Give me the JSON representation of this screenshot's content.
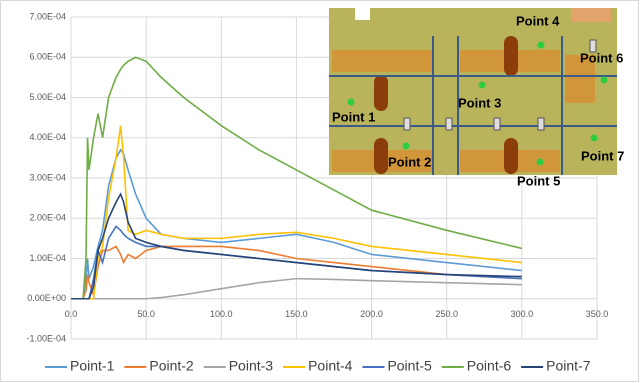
{
  "chart_data": {
    "type": "line",
    "x": [
      0,
      8,
      10,
      11,
      12,
      15,
      18,
      21,
      25,
      30,
      33,
      35,
      38,
      43,
      50,
      60,
      75,
      100,
      125,
      150,
      175,
      200,
      250,
      300
    ],
    "xlim": [
      0,
      350
    ],
    "xticks": [
      {
        "value": 0,
        "label": "0.0"
      },
      {
        "value": 50,
        "label": "50.0"
      },
      {
        "value": 100,
        "label": "100.0"
      },
      {
        "value": 150,
        "label": "150.0"
      },
      {
        "value": 200,
        "label": "200.0"
      },
      {
        "value": 250,
        "label": "250.0"
      },
      {
        "value": 300,
        "label": "300.0"
      },
      {
        "value": 350,
        "label": "350.0"
      }
    ],
    "ylim": [
      -0.0001,
      0.0007
    ],
    "yticks": [
      {
        "value": -0.0001,
        "label": "-1.00E-04"
      },
      {
        "value": 0,
        "label": "0.00E+00"
      },
      {
        "value": 0.0001,
        "label": "1.00E-04"
      },
      {
        "value": 0.0002,
        "label": "2.00E-04"
      },
      {
        "value": 0.0003,
        "label": "3.00E-04"
      },
      {
        "value": 0.0004,
        "label": "4.00E-04"
      },
      {
        "value": 0.0005,
        "label": "5.00E-04"
      },
      {
        "value": 0.0006,
        "label": "6.00E-04"
      },
      {
        "value": 0.0007,
        "label": "7.00E-04"
      }
    ],
    "grid": true,
    "legend": "bottom",
    "series": [
      {
        "name": "Point-1",
        "color": "#5b9bd5",
        "values": [
          0,
          0,
          5e-05,
          0.0001,
          5e-05,
          8e-05,
          0.00013,
          0.00017,
          0.00028,
          0.00035,
          0.00037,
          0.00036,
          0.00032,
          0.00026,
          0.0002,
          0.00016,
          0.00015,
          0.00014,
          0.00015,
          0.00016,
          0.00014,
          0.00011,
          9e-05,
          7e-05
        ]
      },
      {
        "name": "Point-2",
        "color": "#ed7d31",
        "values": [
          0,
          0,
          2e-05,
          6e-05,
          4e-05,
          1e-05,
          8e-05,
          0.00012,
          0.00012,
          0.00013,
          0.00011,
          9e-05,
          0.00011,
          0.0001,
          0.00012,
          0.00013,
          0.00013,
          0.00013,
          0.00012,
          0.0001,
          9e-05,
          8e-05,
          6e-05,
          5e-05
        ]
      },
      {
        "name": "Point-3",
        "color": "#a5a5a5",
        "values": [
          0,
          0,
          0,
          0,
          0,
          0,
          0,
          0,
          0,
          0,
          0,
          0,
          0,
          0,
          0,
          3e-06,
          1e-05,
          2.5e-05,
          4e-05,
          5e-05,
          4.8e-05,
          4.5e-05,
          4e-05,
          3.5e-05
        ]
      },
      {
        "name": "Point-4",
        "color": "#ffc000",
        "values": [
          0,
          0,
          0,
          0,
          0,
          0,
          0.0001,
          0.00013,
          0.00025,
          0.00035,
          0.00043,
          0.00035,
          0.00017,
          0.00016,
          0.00017,
          0.00016,
          0.00015,
          0.00015,
          0.00016,
          0.000165,
          0.00015,
          0.00013,
          0.00011,
          9e-05
        ]
      },
      {
        "name": "Point-5",
        "color": "#4472c4",
        "values": [
          0,
          0,
          0,
          0,
          0,
          5e-05,
          0.00012,
          9e-05,
          0.00015,
          0.00018,
          0.00017,
          0.00016,
          0.00015,
          0.00014,
          0.00013,
          0.00013,
          0.00012,
          0.00011,
          0.0001,
          9e-05,
          8e-05,
          7e-05,
          6e-05,
          5e-05
        ]
      },
      {
        "name": "Point-6",
        "color": "#70ad47",
        "values": [
          0,
          0,
          0.0001,
          0.0004,
          0.00032,
          0.0004,
          0.00046,
          0.0004,
          0.0005,
          0.00055,
          0.00057,
          0.00058,
          0.00059,
          0.0006,
          0.00059,
          0.00055,
          0.0005,
          0.00043,
          0.00037,
          0.00032,
          0.00027,
          0.00022,
          0.00017,
          0.000125
        ]
      },
      {
        "name": "Point-7",
        "color": "#264478",
        "values": [
          0,
          0,
          0,
          0,
          0,
          3e-05,
          0.00012,
          0.00015,
          0.0002,
          0.00024,
          0.00026,
          0.00024,
          0.00019,
          0.00015,
          0.00014,
          0.00013,
          0.00012,
          0.00011,
          0.0001,
          9e-05,
          8e-05,
          7e-05,
          6e-05,
          5.5e-05
        ]
      }
    ]
  },
  "inset": {
    "labels": [
      "Point 1",
      "Point 2",
      "Point 3",
      "Point 4",
      "Point 5",
      "Point 6",
      "Point 7"
    ]
  }
}
